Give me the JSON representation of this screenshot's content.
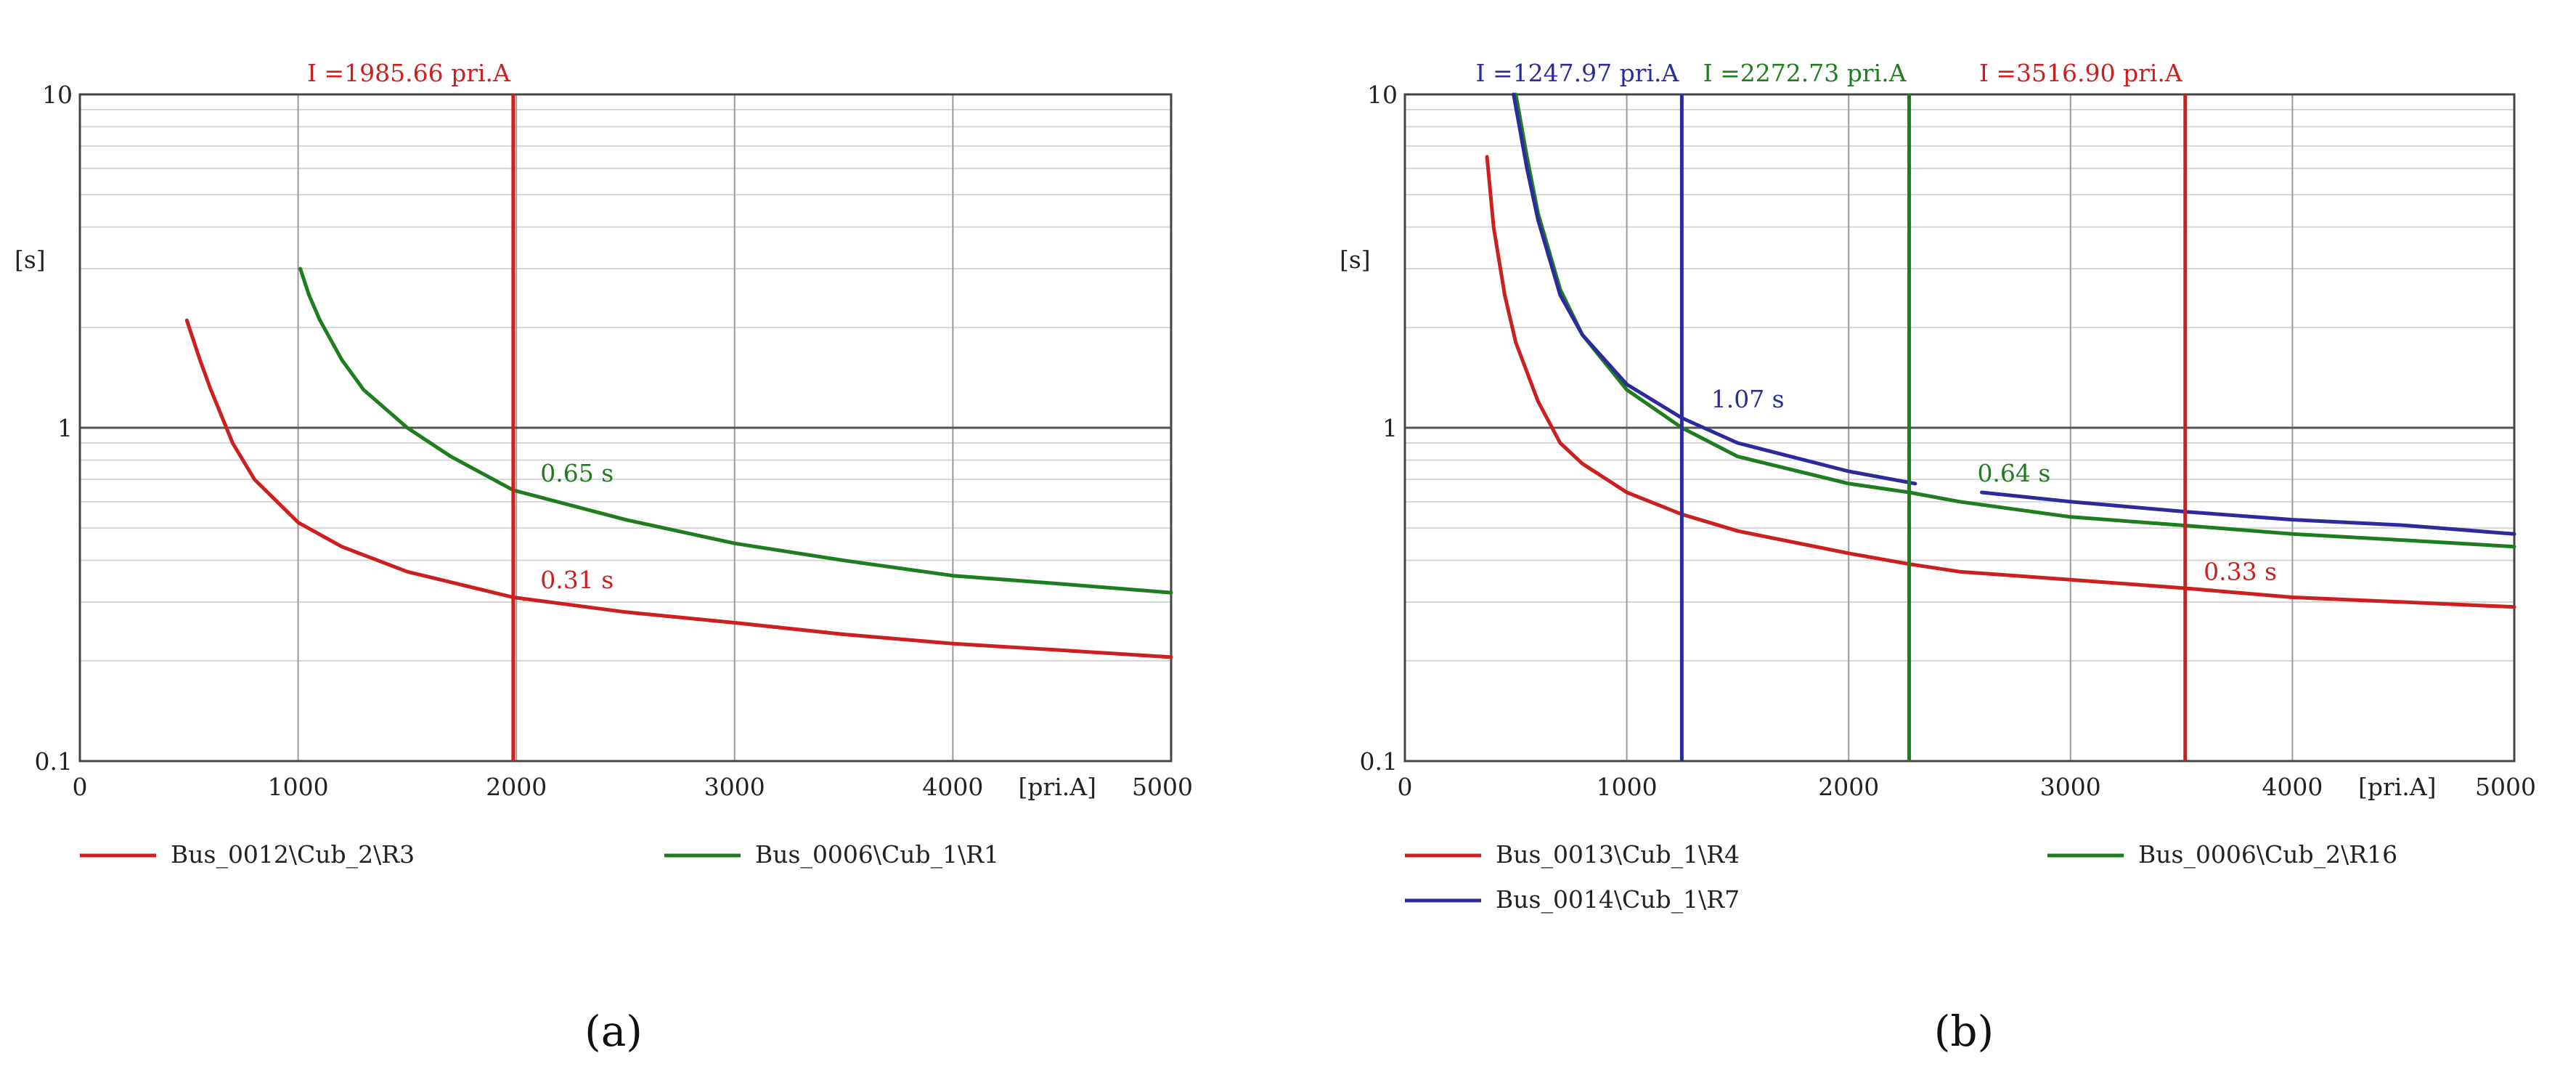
{
  "chart_data": [
    {
      "type": "line",
      "panel_label": "(a)",
      "xscale": "linear",
      "yscale": "log",
      "xlim": [
        0,
        5000
      ],
      "ylim": [
        0.1,
        10
      ],
      "x_ticks": [
        "0",
        "1000",
        "2000",
        "3000",
        "4000",
        "5000"
      ],
      "x_unit_label": "[pri.A]",
      "y_ticks": [
        "0.1",
        "1",
        "10"
      ],
      "ylabel": "[s]",
      "series": [
        {
          "name": "Bus_0012\\Cub_2\\R3",
          "color": "#cc2020",
          "x": [
            490,
            550,
            600,
            700,
            800,
            1000,
            1200,
            1500,
            1985.66,
            2500,
            3000,
            3500,
            4000,
            4500,
            5000
          ],
          "y": [
            2.1,
            1.6,
            1.3,
            0.9,
            0.7,
            0.52,
            0.44,
            0.37,
            0.31,
            0.28,
            0.26,
            0.24,
            0.225,
            0.215,
            0.205
          ]
        },
        {
          "name": "Bus_0006\\Cub_1\\R1",
          "color": "#1e7d1e",
          "x": [
            1010,
            1050,
            1100,
            1200,
            1300,
            1500,
            1700,
            1985.66,
            2500,
            3000,
            3500,
            4000,
            4500,
            5000
          ],
          "y": [
            3.0,
            2.5,
            2.1,
            1.6,
            1.3,
            1.0,
            0.82,
            0.65,
            0.53,
            0.45,
            0.4,
            0.36,
            0.34,
            0.32
          ]
        }
      ],
      "markers": [
        {
          "label": "I =1985.66 pri.A",
          "x": 1985.66,
          "color": "#cc2020"
        }
      ],
      "annotations": [
        {
          "text": "0.65 s",
          "x": 2110,
          "y": 0.69,
          "color": "#1e7d1e"
        },
        {
          "text": "0.31 s",
          "x": 2110,
          "y": 0.33,
          "color": "#cc2020"
        }
      ]
    },
    {
      "type": "line",
      "panel_label": "(b)",
      "xscale": "linear",
      "yscale": "log",
      "xlim": [
        0,
        5000
      ],
      "ylim": [
        0.1,
        10
      ],
      "x_ticks": [
        "0",
        "1000",
        "2000",
        "3000",
        "4000",
        "5000"
      ],
      "x_unit_label": "[pri.A]",
      "y_ticks": [
        "0.1",
        "1",
        "10"
      ],
      "ylabel": "[s]",
      "series": [
        {
          "name": "Bus_0013\\Cub_1\\R4",
          "color": "#cc2020",
          "x": [
            370,
            400,
            450,
            500,
            600,
            700,
            800,
            1000,
            1247.97,
            1500,
            2000,
            2272.73,
            2500,
            3000,
            3516.9,
            4000,
            4500,
            5000
          ],
          "y": [
            6.5,
            4.0,
            2.5,
            1.8,
            1.2,
            0.9,
            0.78,
            0.64,
            0.55,
            0.49,
            0.42,
            0.39,
            0.37,
            0.35,
            0.33,
            0.31,
            0.3,
            0.29
          ]
        },
        {
          "name": "Bus_0006\\Cub_2\\R16",
          "color": "#1e7d1e",
          "x": [
            500,
            550,
            600,
            700,
            800,
            1000,
            1247.97,
            1500,
            2000,
            2272.73,
            2500,
            3000,
            3500,
            4000,
            4500,
            5000
          ],
          "y": [
            10,
            6.5,
            4.4,
            2.6,
            1.9,
            1.3,
            1.0,
            0.82,
            0.68,
            0.64,
            0.6,
            0.54,
            0.51,
            0.48,
            0.46,
            0.44
          ]
        },
        {
          "name": "Bus_0014\\Cub_1\\R7",
          "color": "#2b2b9a",
          "x": [
            490,
            550,
            600,
            700,
            800,
            1000,
            1247.97,
            1500,
            2000,
            2300
          ],
          "y": [
            10,
            6.0,
            4.2,
            2.5,
            1.9,
            1.35,
            1.07,
            0.9,
            0.74,
            0.68
          ],
          "x2": [
            2600,
            3000,
            3516.9,
            4000,
            4500,
            5000
          ],
          "y2": [
            0.64,
            0.6,
            0.56,
            0.53,
            0.51,
            0.48
          ]
        }
      ],
      "markers": [
        {
          "label": "I =1247.97 pri.A",
          "x": 1247.97,
          "color": "#2b2b9a"
        },
        {
          "label": "I =2272.73 pri.A",
          "x": 2272.73,
          "color": "#1e7d1e"
        },
        {
          "label": "I =3516.90 pri.A",
          "x": 3516.9,
          "color": "#cc2020"
        }
      ],
      "annotations": [
        {
          "text": "1.07 s",
          "x": 1380,
          "y": 1.15,
          "color": "#2b2b9a"
        },
        {
          "text": "0.64 s",
          "x": 2580,
          "y": 0.69,
          "color": "#1e7d1e"
        },
        {
          "text": "0.33 s",
          "x": 3600,
          "y": 0.35,
          "color": "#cc2020"
        }
      ]
    }
  ]
}
